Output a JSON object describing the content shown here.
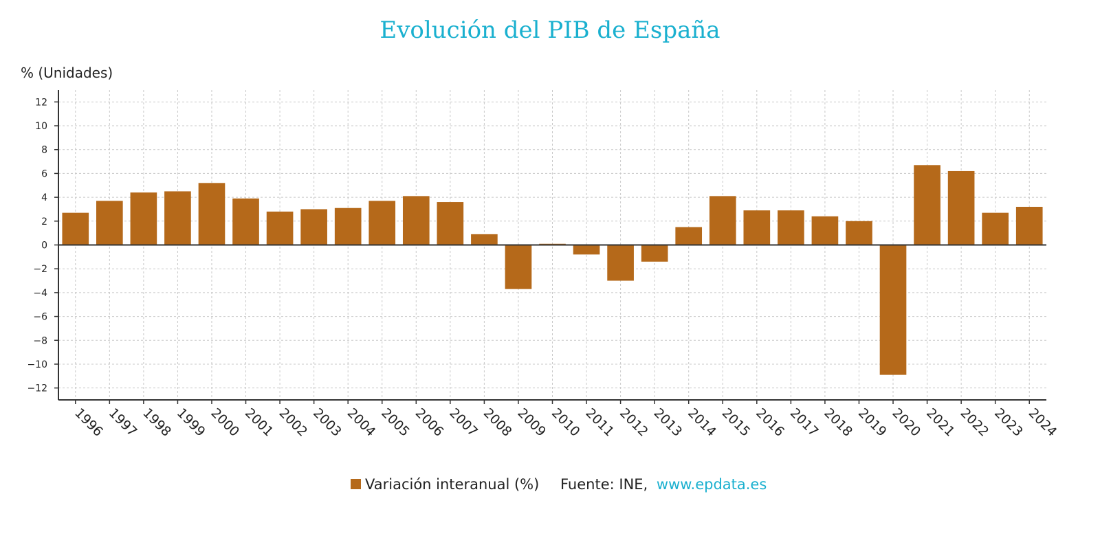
{
  "chart_data": {
    "type": "bar",
    "title": "Evolución del PIB de España",
    "ylabel": "% (Unidades)",
    "xlabel": "",
    "ylim": [
      -13,
      13
    ],
    "yticks": [
      12,
      10,
      8,
      6,
      4,
      2,
      0,
      -2,
      -4,
      -6,
      -8,
      -10,
      -12
    ],
    "ytick_labels": [
      "12",
      "10",
      "8",
      "6",
      "4",
      "2",
      "0",
      "−2",
      "−4",
      "−6",
      "−8",
      "−10",
      "−12"
    ],
    "grid": true,
    "categories": [
      "1996",
      "1997",
      "1998",
      "1999",
      "2000",
      "2001",
      "2002",
      "2003",
      "2004",
      "2005",
      "2006",
      "2007",
      "2008",
      "2009",
      "2010",
      "2011",
      "2012",
      "2013",
      "2014",
      "2015",
      "2016",
      "2017",
      "2018",
      "2019",
      "2020",
      "2021",
      "2022",
      "2023",
      "2024"
    ],
    "series": [
      {
        "name": "Variación interanual (%)",
        "color": "#b5691a",
        "values": [
          2.7,
          3.7,
          4.4,
          4.5,
          5.2,
          3.9,
          2.8,
          3.0,
          3.1,
          3.7,
          4.1,
          3.6,
          0.9,
          -3.7,
          0.1,
          -0.8,
          -3.0,
          -1.4,
          1.5,
          4.1,
          2.9,
          2.9,
          2.4,
          2.0,
          -10.9,
          6.7,
          6.2,
          2.7,
          3.2
        ]
      }
    ],
    "legend": {
      "placement": "bottom",
      "label": "Variación interanual (%)",
      "source_prefix": "Fuente: INE,",
      "source_link": "www.epdata.es"
    }
  },
  "colors": {
    "title": "#1ab0cf",
    "bar": "#b5691a",
    "link": "#1ab0cf"
  }
}
